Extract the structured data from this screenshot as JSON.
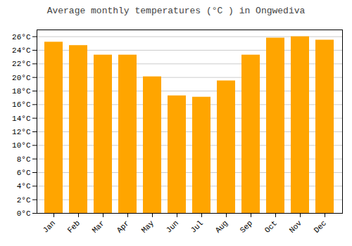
{
  "chart_data": {
    "type": "bar",
    "title": "Average monthly temperatures (°C ) in Ongwediva",
    "categories": [
      "Jan",
      "Feb",
      "Mar",
      "Apr",
      "May",
      "Jun",
      "Jul",
      "Aug",
      "Sep",
      "Oct",
      "Nov",
      "Dec"
    ],
    "values": [
      25.2,
      24.7,
      23.3,
      23.3,
      20.1,
      17.3,
      17.1,
      19.5,
      23.3,
      25.8,
      26.0,
      25.5
    ],
    "color": "#FFA500",
    "ylim": [
      0,
      27
    ],
    "yticks": [
      {
        "value": 0,
        "label": "0°C"
      },
      {
        "value": 2,
        "label": "2°C"
      },
      {
        "value": 4,
        "label": "4°C"
      },
      {
        "value": 6,
        "label": "6°C"
      },
      {
        "value": 8,
        "label": "8°C"
      },
      {
        "value": 10,
        "label": "10°C"
      },
      {
        "value": 12,
        "label": "12°C"
      },
      {
        "value": 14,
        "label": "14°C"
      },
      {
        "value": 16,
        "label": "16°C"
      },
      {
        "value": 18,
        "label": "18°C"
      },
      {
        "value": 20,
        "label": "20°C"
      },
      {
        "value": 22,
        "label": "22°C"
      },
      {
        "value": 24,
        "label": "24°C"
      },
      {
        "value": 26,
        "label": "26°C"
      }
    ],
    "grid": true
  }
}
